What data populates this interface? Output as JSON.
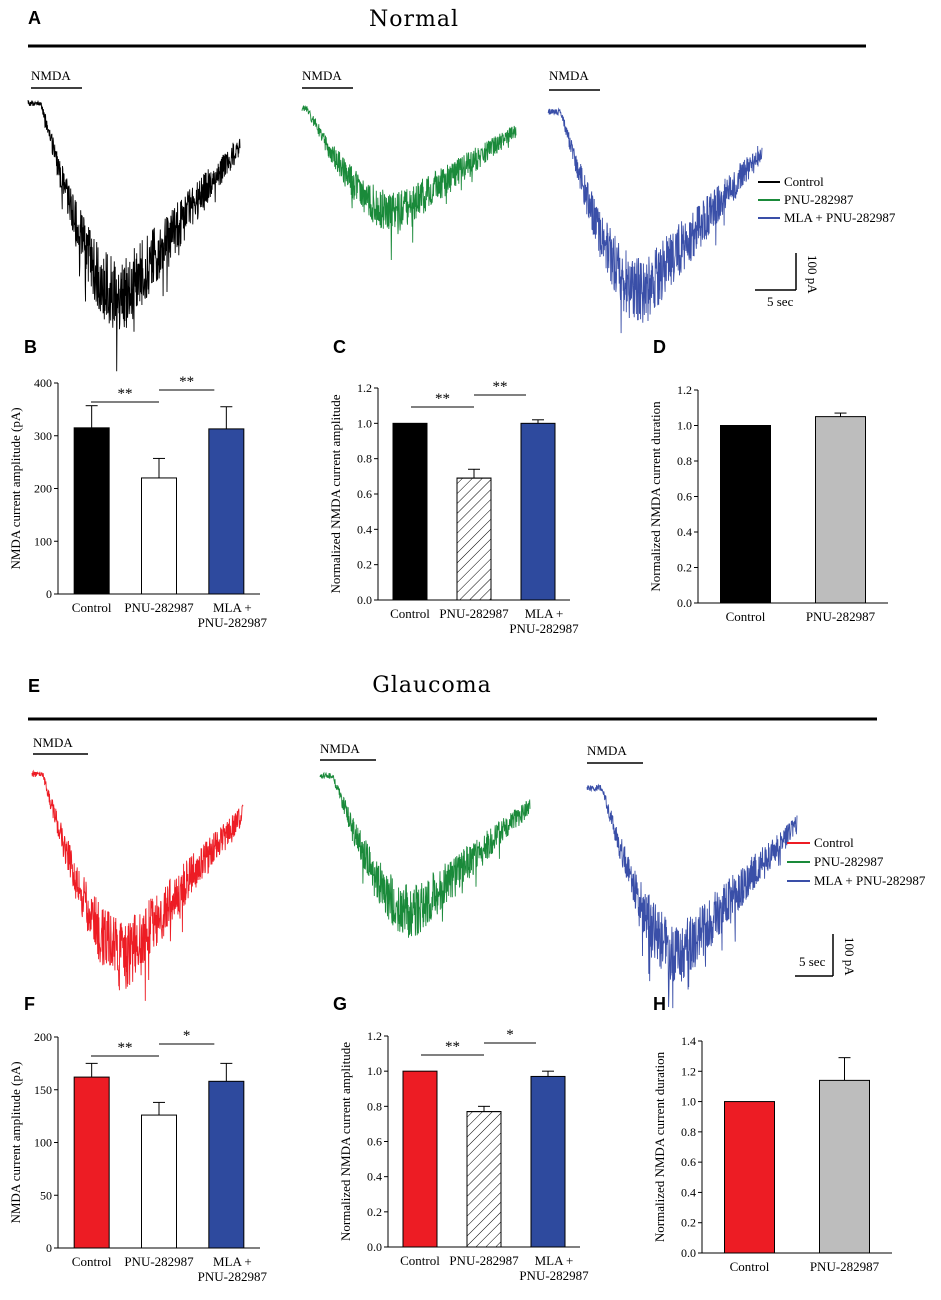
{
  "colors": {
    "control_normal": "#000000",
    "control_glaucoma": "#ed1c24",
    "pnu_trace": "#1a8a3a",
    "mla_trace": "#3a4fa8",
    "pnu_bar_white": "#ffffff",
    "mla_bar": "#2e4a9e",
    "gray_bar": "#bdbdbd"
  },
  "sections": {
    "normal": {
      "title": "Normal"
    },
    "glaucoma": {
      "title": "Glaucoma"
    }
  },
  "panels": {
    "A": "A",
    "B": "B",
    "C": "C",
    "D": "D",
    "E": "E",
    "F": "F",
    "G": "G",
    "H": "H"
  },
  "traces": {
    "stim_label": "NMDA",
    "legend": [
      "Control",
      "PNU-282987",
      "MLA + PNU-282987"
    ],
    "scale_time": "5 sec",
    "scale_current": "100 pA",
    "normal_depth": [
      0.88,
      0.48,
      0.82
    ],
    "glaucoma_depth": [
      0.82,
      0.62,
      0.75
    ]
  },
  "chart_data": [
    {
      "id": "B",
      "type": "bar",
      "ylabel": "NMDA current amplitude (pA)",
      "ylim": [
        0,
        400
      ],
      "yticks": [
        0,
        100,
        200,
        300,
        400
      ],
      "categories": [
        "Control",
        "PNU-282987",
        "MLA + PNU-282987"
      ],
      "values": [
        315,
        220,
        313
      ],
      "errors": [
        42,
        37,
        42
      ],
      "fills": [
        "#000000",
        "#ffffff",
        "#2e4a9e"
      ],
      "hatch": [
        false,
        false,
        false
      ],
      "significance": [
        {
          "from": 0,
          "to": 1,
          "label": "**"
        },
        {
          "from": 1,
          "to": 2,
          "label": "**"
        }
      ]
    },
    {
      "id": "C",
      "type": "bar",
      "ylabel": "Normalized NMDA current amplitude",
      "ylim": [
        0,
        1.2
      ],
      "yticks": [
        "0.0",
        "0.2",
        "0.4",
        "0.6",
        "0.8",
        "1.0",
        "1.2"
      ],
      "categories": [
        "Control",
        "PNU-282987",
        "MLA + PNU-282987"
      ],
      "values": [
        1.0,
        0.69,
        1.0
      ],
      "errors": [
        0,
        0.05,
        0.02
      ],
      "fills": [
        "#000000",
        "#ffffff",
        "#2e4a9e"
      ],
      "hatch": [
        false,
        true,
        false
      ],
      "significance": [
        {
          "from": 0,
          "to": 1,
          "label": "**"
        },
        {
          "from": 1,
          "to": 2,
          "label": "**"
        }
      ]
    },
    {
      "id": "D",
      "type": "bar",
      "ylabel": "Normalized NMDA current duration",
      "ylim": [
        0,
        1.2
      ],
      "yticks": [
        "0.0",
        "0.2",
        "0.4",
        "0.6",
        "0.8",
        "1.0",
        "1.2"
      ],
      "categories": [
        "Control",
        "PNU-282987"
      ],
      "values": [
        1.0,
        1.05
      ],
      "errors": [
        0,
        0.02
      ],
      "fills": [
        "#000000",
        "#bdbdbd"
      ],
      "hatch": [
        false,
        false
      ],
      "significance": []
    },
    {
      "id": "F",
      "type": "bar",
      "ylabel": "NMDA current amplitude (pA)",
      "ylim": [
        0,
        200
      ],
      "yticks": [
        0,
        50,
        100,
        150,
        200
      ],
      "categories": [
        "Control",
        "PNU-282987",
        "MLA + PNU-282987"
      ],
      "values": [
        162,
        126,
        158
      ],
      "errors": [
        13,
        12,
        17
      ],
      "fills": [
        "#ed1c24",
        "#ffffff",
        "#2e4a9e"
      ],
      "hatch": [
        false,
        false,
        false
      ],
      "significance": [
        {
          "from": 0,
          "to": 1,
          "label": "**"
        },
        {
          "from": 1,
          "to": 2,
          "label": "*"
        }
      ]
    },
    {
      "id": "G",
      "type": "bar",
      "ylabel": "Normalized NMDA current amplitude",
      "ylim": [
        0,
        1.2
      ],
      "yticks": [
        "0.0",
        "0.2",
        "0.4",
        "0.6",
        "0.8",
        "1.0",
        "1.2"
      ],
      "categories": [
        "Control",
        "PNU-282987",
        "MLA + PNU-282987"
      ],
      "values": [
        1.0,
        0.77,
        0.97
      ],
      "errors": [
        0,
        0.03,
        0.03
      ],
      "fills": [
        "#ed1c24",
        "#ffffff",
        "#2e4a9e"
      ],
      "hatch": [
        false,
        true,
        false
      ],
      "significance": [
        {
          "from": 0,
          "to": 1,
          "label": "**"
        },
        {
          "from": 1,
          "to": 2,
          "label": "*"
        }
      ]
    },
    {
      "id": "H",
      "type": "bar",
      "ylabel": "Normalized NMDA current duration",
      "ylim": [
        0,
        1.4
      ],
      "yticks": [
        "0.0",
        "0.2",
        "0.4",
        "0.6",
        "0.8",
        "1.0",
        "1.2",
        "1.4"
      ],
      "categories": [
        "Control",
        "PNU-282987"
      ],
      "values": [
        1.0,
        1.14
      ],
      "errors": [
        0,
        0.15
      ],
      "fills": [
        "#ed1c24",
        "#bdbdbd"
      ],
      "hatch": [
        false,
        false
      ],
      "significance": []
    }
  ]
}
